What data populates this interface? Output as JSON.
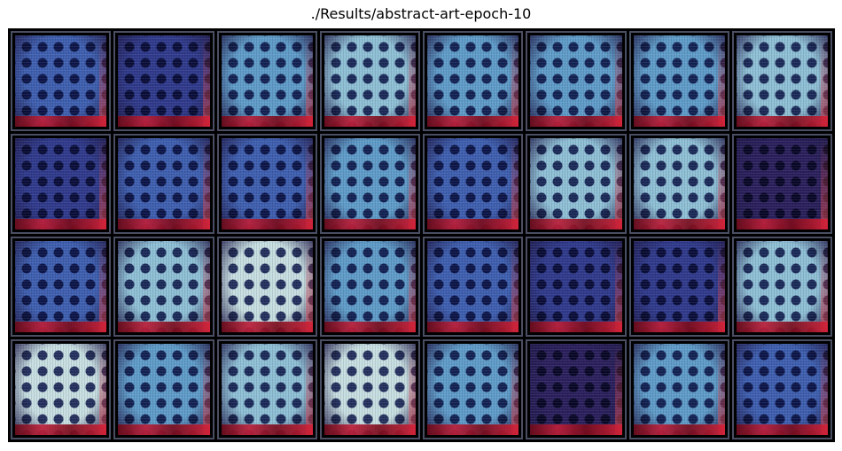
{
  "title": "./Results/abstract-art-epoch-10",
  "grid": {
    "rows": 4,
    "cols": 8,
    "tiles": [
      {
        "tone": "blue"
      },
      {
        "tone": "navy"
      },
      {
        "tone": "cyan"
      },
      {
        "tone": "light"
      },
      {
        "tone": "cyan"
      },
      {
        "tone": "cyan"
      },
      {
        "tone": "cyan"
      },
      {
        "tone": "light"
      },
      {
        "tone": "navy"
      },
      {
        "tone": "blue"
      },
      {
        "tone": "blue"
      },
      {
        "tone": "cyan"
      },
      {
        "tone": "blue"
      },
      {
        "tone": "light"
      },
      {
        "tone": "light"
      },
      {
        "tone": "dark"
      },
      {
        "tone": "blue"
      },
      {
        "tone": "light"
      },
      {
        "tone": "pale"
      },
      {
        "tone": "cyan"
      },
      {
        "tone": "blue"
      },
      {
        "tone": "navy"
      },
      {
        "tone": "navy"
      },
      {
        "tone": "light"
      },
      {
        "tone": "pale"
      },
      {
        "tone": "cyan"
      },
      {
        "tone": "light"
      },
      {
        "tone": "pale"
      },
      {
        "tone": "cyan"
      },
      {
        "tone": "dark"
      },
      {
        "tone": "cyan"
      },
      {
        "tone": "blue"
      }
    ]
  },
  "colors": {
    "dark": "#2a1f5c",
    "navy": "#2f3a8c",
    "blue": "#3e5fb0",
    "cyan": "#5f9cc9",
    "light": "#8fc0d6",
    "pale": "#c7dfe2"
  }
}
